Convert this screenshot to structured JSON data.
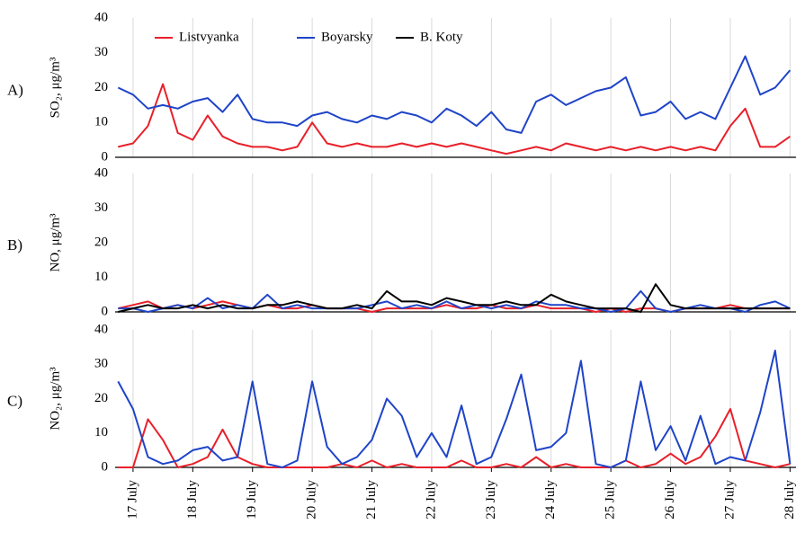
{
  "chart_data": [
    {
      "type": "line",
      "panel": "A)",
      "ylabel": "SO₂, μg/m³",
      "ylim": [
        0,
        40
      ],
      "yticks": [
        0,
        10,
        20,
        30,
        40
      ],
      "xlim": [
        -0.3,
        11.1
      ],
      "xticks": [
        0,
        1,
        2,
        3,
        4,
        5,
        6,
        7,
        8,
        9,
        10,
        11
      ],
      "x": [
        -0.25,
        0,
        0.25,
        0.5,
        0.75,
        1,
        1.25,
        1.5,
        1.75,
        2,
        2.25,
        2.5,
        2.75,
        3,
        3.25,
        3.5,
        3.75,
        4,
        4.25,
        4.5,
        4.75,
        5,
        5.25,
        5.5,
        5.75,
        6,
        6.25,
        6.5,
        6.75,
        7,
        7.25,
        7.5,
        7.75,
        8,
        8.25,
        8.5,
        8.75,
        9,
        9.25,
        9.5,
        9.75,
        10,
        10.25,
        10.5,
        10.75,
        11
      ],
      "series": [
        {
          "name": "Listvyanka",
          "color": "#e8202a",
          "values": [
            3,
            4,
            9,
            21,
            7,
            5,
            12,
            6,
            4,
            3,
            3,
            2,
            3,
            10,
            4,
            3,
            4,
            3,
            3,
            4,
            3,
            4,
            3,
            4,
            3,
            2,
            1,
            2,
            3,
            2,
            4,
            3,
            2,
            3,
            2,
            3,
            2,
            3,
            2,
            3,
            2,
            9,
            14,
            3,
            3,
            6
          ]
        },
        {
          "name": "Boyarsky",
          "color": "#1f44c8",
          "values": [
            20,
            18,
            14,
            15,
            14,
            16,
            17,
            13,
            18,
            11,
            10,
            10,
            9,
            12,
            13,
            11,
            10,
            12,
            11,
            13,
            12,
            10,
            14,
            12,
            9,
            13,
            8,
            7,
            16,
            18,
            15,
            17,
            19,
            20,
            23,
            12,
            13,
            16,
            11,
            13,
            11,
            20,
            29,
            18,
            20,
            25
          ]
        }
      ]
    },
    {
      "type": "line",
      "panel": "B)",
      "ylabel": "NO, μg/m³",
      "ylim": [
        0,
        40
      ],
      "yticks": [
        0,
        10,
        20,
        30,
        40
      ],
      "xlim": [
        -0.3,
        11.1
      ],
      "xticks": [
        0,
        1,
        2,
        3,
        4,
        5,
        6,
        7,
        8,
        9,
        10,
        11
      ],
      "x": [
        -0.25,
        0,
        0.25,
        0.5,
        0.75,
        1,
        1.25,
        1.5,
        1.75,
        2,
        2.25,
        2.5,
        2.75,
        3,
        3.25,
        3.5,
        3.75,
        4,
        4.25,
        4.5,
        4.75,
        5,
        5.25,
        5.5,
        5.75,
        6,
        6.25,
        6.5,
        6.75,
        7,
        7.25,
        7.5,
        7.75,
        8,
        8.25,
        8.5,
        8.75,
        9,
        9.25,
        9.5,
        9.75,
        10,
        10.25,
        10.5,
        10.75,
        11
      ],
      "series": [
        {
          "name": "Listvyanka",
          "color": "#e8202a",
          "values": [
            1,
            2,
            3,
            1,
            2,
            1,
            2,
            3,
            2,
            1,
            2,
            1,
            1,
            2,
            1,
            1,
            1,
            0,
            1,
            1,
            1,
            1,
            2,
            1,
            1,
            2,
            1,
            1,
            2,
            1,
            1,
            1,
            0,
            1,
            0,
            1,
            1,
            0,
            1,
            1,
            1,
            2,
            1,
            1,
            1,
            1
          ]
        },
        {
          "name": "Boyarsky",
          "color": "#1f44c8",
          "values": [
            1,
            1,
            0,
            1,
            2,
            1,
            4,
            1,
            2,
            1,
            5,
            1,
            2,
            1,
            1,
            1,
            1,
            2,
            3,
            1,
            2,
            1,
            3,
            1,
            2,
            1,
            2,
            1,
            3,
            2,
            2,
            1,
            1,
            0,
            1,
            6,
            1,
            0,
            1,
            2,
            1,
            1,
            0,
            2,
            3,
            1
          ]
        },
        {
          "name": "B. Koty",
          "color": "#000000",
          "values": [
            0,
            1,
            2,
            1,
            1,
            2,
            1,
            2,
            1,
            1,
            2,
            2,
            3,
            2,
            1,
            1,
            2,
            1,
            6,
            3,
            3,
            2,
            4,
            3,
            2,
            2,
            3,
            2,
            2,
            5,
            3,
            2,
            1,
            1,
            1,
            0,
            8,
            2,
            1,
            1,
            1,
            1,
            1,
            1,
            1,
            1
          ]
        }
      ]
    },
    {
      "type": "line",
      "panel": "C)",
      "ylabel": "NO₂, μg/m³",
      "ylim": [
        0,
        40
      ],
      "yticks": [
        0,
        10,
        20,
        30,
        40
      ],
      "xlim": [
        -0.3,
        11.1
      ],
      "xticks": [
        {
          "value": 0,
          "label": "17 July"
        },
        {
          "value": 1,
          "label": "18 July"
        },
        {
          "value": 2,
          "label": "19 July"
        },
        {
          "value": 3,
          "label": "20 July"
        },
        {
          "value": 4,
          "label": "21 July"
        },
        {
          "value": 5,
          "label": "22 July"
        },
        {
          "value": 6,
          "label": "23 July"
        },
        {
          "value": 7,
          "label": "24 July"
        },
        {
          "value": 8,
          "label": "25 July"
        },
        {
          "value": 9,
          "label": "26 July"
        },
        {
          "value": 10,
          "label": "27 July"
        },
        {
          "value": 11,
          "label": "28 July"
        }
      ],
      "x": [
        -0.25,
        0,
        0.25,
        0.5,
        0.75,
        1,
        1.25,
        1.5,
        1.75,
        2,
        2.25,
        2.5,
        2.75,
        3,
        3.25,
        3.5,
        3.75,
        4,
        4.25,
        4.5,
        4.75,
        5,
        5.25,
        5.5,
        5.75,
        6,
        6.25,
        6.5,
        6.75,
        7,
        7.25,
        7.5,
        7.75,
        8,
        8.25,
        8.5,
        8.75,
        9,
        9.25,
        9.5,
        9.75,
        10,
        10.25,
        10.5,
        10.75,
        11
      ],
      "series": [
        {
          "name": "Listvyanka",
          "color": "#e8202a",
          "values": [
            0,
            0,
            14,
            8,
            0,
            1,
            3,
            11,
            3,
            1,
            0,
            0,
            0,
            0,
            0,
            1,
            0,
            2,
            0,
            1,
            0,
            0,
            0,
            2,
            0,
            0,
            1,
            0,
            3,
            0,
            1,
            0,
            0,
            0,
            2,
            0,
            1,
            4,
            1,
            3,
            9,
            17,
            2,
            1,
            0,
            1
          ]
        },
        {
          "name": "Boyarsky",
          "color": "#1f44c8",
          "values": [
            25,
            17,
            3,
            1,
            2,
            5,
            6,
            2,
            3,
            25,
            1,
            0,
            2,
            25,
            6,
            1,
            3,
            8,
            20,
            15,
            3,
            10,
            3,
            18,
            1,
            3,
            14,
            27,
            5,
            6,
            10,
            31,
            1,
            0,
            2,
            25,
            5,
            12,
            2,
            15,
            1,
            3,
            2,
            16,
            34,
            1
          ]
        }
      ]
    }
  ]
}
